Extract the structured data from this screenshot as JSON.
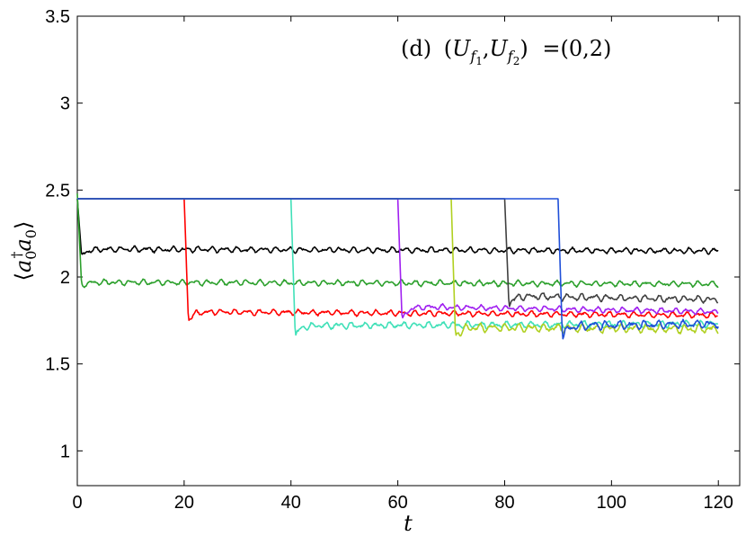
{
  "chart_data": {
    "type": "line",
    "title": "",
    "annotation": "(d) (U_f1, U_f2) =(0,2)",
    "annotation_parts": {
      "panel": "(d)",
      "U": "U",
      "f": "f",
      "sub1": "1",
      "sub2": "2",
      "comma": ",",
      "equals_value": "=(0,2)"
    },
    "xlabel": "t",
    "ylabel": "⟨a0† a0⟩",
    "ylabel_parts": {
      "left": "⟨",
      "a": "a",
      "sub": "0",
      "dag": "†",
      "right": "⟩"
    },
    "xlim": [
      0,
      124
    ],
    "ylim": [
      0.8,
      3.5
    ],
    "xticks": [
      "0",
      "20",
      "40",
      "60",
      "80",
      "100",
      "120"
    ],
    "yticks": [
      "1",
      "1.5",
      "2",
      "2.5",
      "3",
      "3.5"
    ],
    "grid": false,
    "legend": "none",
    "series": [
      {
        "color": "#000000",
        "quench_t": 0,
        "initial": 2.45,
        "dip": 2.12,
        "settle": 2.16,
        "final": 2.15,
        "osc": 0.01
      },
      {
        "color": "#2ca02c",
        "quench_t": 0,
        "initial": 2.48,
        "dip": 1.95,
        "settle": 1.97,
        "final": 1.96,
        "osc": 0.01
      },
      {
        "color": "#ff0000",
        "quench_t": 20,
        "initial": 2.45,
        "dip": 1.75,
        "settle": 1.8,
        "final": 1.78,
        "osc": 0.01
      },
      {
        "color": "#40e0b8",
        "quench_t": 40,
        "initial": 2.45,
        "dip": 1.66,
        "settle": 1.72,
        "final": 1.73,
        "osc": 0.012
      },
      {
        "color": "#a020f0",
        "quench_t": 60,
        "initial": 2.45,
        "dip": 1.74,
        "settle": 1.83,
        "final": 1.8,
        "osc": 0.01
      },
      {
        "color": "#b0d020",
        "quench_t": 70,
        "initial": 2.45,
        "dip": 1.65,
        "settle": 1.71,
        "final": 1.7,
        "osc": 0.015
      },
      {
        "color": "#404040",
        "quench_t": 80,
        "initial": 2.45,
        "dip": 1.84,
        "settle": 1.89,
        "final": 1.87,
        "osc": 0.012
      },
      {
        "color": "#1f4fd8",
        "quench_t": 90,
        "initial": 2.45,
        "dip": 1.65,
        "settle": 1.72,
        "final": 1.73,
        "osc": 0.015
      }
    ],
    "x_end": 120
  }
}
